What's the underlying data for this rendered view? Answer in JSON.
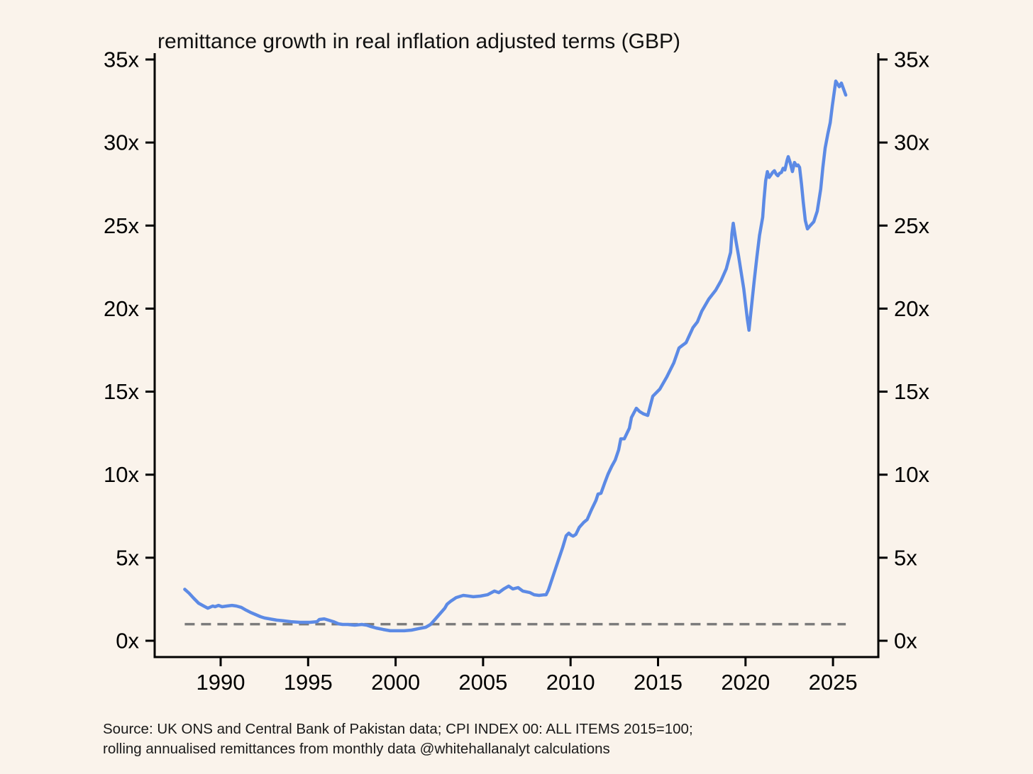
{
  "page": {
    "background_color": "#FAF3EB"
  },
  "chart_data": {
    "type": "line",
    "title": "remittance growth in real inflation adjusted terms (GBP)",
    "xlabel": "",
    "ylabel": "",
    "x_axis": {
      "tick_values": [
        1990,
        1995,
        2000,
        2005,
        2010,
        2015,
        2020,
        2025
      ],
      "tick_labels": [
        "1990",
        "1995",
        "2000",
        "2005",
        "2010",
        "2015",
        "2020",
        "2025"
      ],
      "range": [
        1986.2,
        2027.6
      ]
    },
    "y_axis": {
      "tick_values": [
        0,
        5,
        10,
        15,
        20,
        25,
        30,
        35
      ],
      "tick_labels": [
        "0x",
        "5x",
        "10x",
        "15x",
        "20x",
        "25x",
        "30x",
        "35x"
      ],
      "range": [
        -1,
        35.5
      ],
      "mirrored_right": true
    },
    "grid": "off",
    "legend": "none",
    "ref_line": {
      "value": 1,
      "style": "dashed",
      "color": "#7b7b7b",
      "meaning": "1x baseline"
    },
    "series": [
      {
        "name": "remittance growth multiple (real GBP)",
        "color": "#5C8AE5",
        "points": [
          [
            1987.95,
            3.1
          ],
          [
            1988.2,
            2.86
          ],
          [
            1988.46,
            2.56
          ],
          [
            1988.74,
            2.26
          ],
          [
            1989.03,
            2.09
          ],
          [
            1989.27,
            1.96
          ],
          [
            1989.55,
            2.09
          ],
          [
            1989.68,
            2.05
          ],
          [
            1989.88,
            2.13
          ],
          [
            1990.08,
            2.05
          ],
          [
            1990.36,
            2.09
          ],
          [
            1990.65,
            2.13
          ],
          [
            1990.9,
            2.09
          ],
          [
            1991.18,
            2.01
          ],
          [
            1991.46,
            1.84
          ],
          [
            1991.7,
            1.71
          ],
          [
            1991.99,
            1.58
          ],
          [
            1992.27,
            1.45
          ],
          [
            1992.51,
            1.37
          ],
          [
            1992.8,
            1.32
          ],
          [
            1993.2,
            1.24
          ],
          [
            1993.6,
            1.2
          ],
          [
            1994.01,
            1.15
          ],
          [
            1994.54,
            1.11
          ],
          [
            1995.11,
            1.11
          ],
          [
            1995.51,
            1.15
          ],
          [
            1995.64,
            1.28
          ],
          [
            1995.92,
            1.32
          ],
          [
            1996.16,
            1.24
          ],
          [
            1996.45,
            1.15
          ],
          [
            1996.73,
            1.02
          ],
          [
            1996.97,
            0.98
          ],
          [
            1997.26,
            0.98
          ],
          [
            1997.66,
            0.94
          ],
          [
            1998.07,
            0.98
          ],
          [
            1998.35,
            0.94
          ],
          [
            1998.6,
            0.85
          ],
          [
            1998.88,
            0.77
          ],
          [
            1999.29,
            0.68
          ],
          [
            1999.69,
            0.6
          ],
          [
            2000.1,
            0.6
          ],
          [
            2000.5,
            0.6
          ],
          [
            2000.91,
            0.64
          ],
          [
            2001.31,
            0.73
          ],
          [
            2001.72,
            0.81
          ],
          [
            2002.0,
            0.98
          ],
          [
            2002.25,
            1.28
          ],
          [
            2002.53,
            1.62
          ],
          [
            2002.81,
            1.96
          ],
          [
            2002.94,
            2.2
          ],
          [
            2003.15,
            2.38
          ],
          [
            2003.46,
            2.6
          ],
          [
            2003.87,
            2.73
          ],
          [
            2004.1,
            2.7
          ],
          [
            2004.44,
            2.65
          ],
          [
            2004.84,
            2.69
          ],
          [
            2005.25,
            2.77
          ],
          [
            2005.65,
            2.99
          ],
          [
            2005.9,
            2.9
          ],
          [
            2006.18,
            3.12
          ],
          [
            2006.46,
            3.29
          ],
          [
            2006.7,
            3.12
          ],
          [
            2007.0,
            3.2
          ],
          [
            2007.27,
            2.99
          ],
          [
            2007.68,
            2.9
          ],
          [
            2007.92,
            2.77
          ],
          [
            2008.2,
            2.73
          ],
          [
            2008.45,
            2.76
          ],
          [
            2008.6,
            2.77
          ],
          [
            2008.74,
            3.07
          ],
          [
            2009.14,
            4.34
          ],
          [
            2009.55,
            5.62
          ],
          [
            2009.75,
            6.32
          ],
          [
            2009.9,
            6.48
          ],
          [
            2010.03,
            6.36
          ],
          [
            2010.15,
            6.3
          ],
          [
            2010.3,
            6.4
          ],
          [
            2010.5,
            6.83
          ],
          [
            2010.76,
            7.13
          ],
          [
            2010.95,
            7.3
          ],
          [
            2011.2,
            7.9
          ],
          [
            2011.45,
            8.45
          ],
          [
            2011.57,
            8.83
          ],
          [
            2011.74,
            8.88
          ],
          [
            2011.95,
            9.5
          ],
          [
            2012.14,
            10.03
          ],
          [
            2012.35,
            10.5
          ],
          [
            2012.55,
            10.88
          ],
          [
            2012.75,
            11.5
          ],
          [
            2012.87,
            12.16
          ],
          [
            2013.07,
            12.16
          ],
          [
            2013.36,
            12.8
          ],
          [
            2013.48,
            13.44
          ],
          [
            2013.76,
            14.0
          ],
          [
            2013.95,
            13.8
          ],
          [
            2014.17,
            13.66
          ],
          [
            2014.41,
            13.57
          ],
          [
            2014.7,
            14.72
          ],
          [
            2015.1,
            15.15
          ],
          [
            2015.5,
            15.88
          ],
          [
            2015.9,
            16.73
          ],
          [
            2016.2,
            17.63
          ],
          [
            2016.35,
            17.75
          ],
          [
            2016.6,
            17.95
          ],
          [
            2017.0,
            18.86
          ],
          [
            2017.25,
            19.2
          ],
          [
            2017.5,
            19.84
          ],
          [
            2017.9,
            20.57
          ],
          [
            2018.3,
            21.12
          ],
          [
            2018.6,
            21.68
          ],
          [
            2018.9,
            22.4
          ],
          [
            2019.15,
            23.39
          ],
          [
            2019.22,
            24.5
          ],
          [
            2019.3,
            25.14
          ],
          [
            2019.45,
            24.1
          ],
          [
            2019.6,
            23.2
          ],
          [
            2019.75,
            22.2
          ],
          [
            2019.9,
            21.2
          ],
          [
            2020.0,
            20.3
          ],
          [
            2020.1,
            19.4
          ],
          [
            2020.2,
            18.7
          ],
          [
            2020.35,
            20.2
          ],
          [
            2020.5,
            21.7
          ],
          [
            2020.65,
            23.1
          ],
          [
            2020.8,
            24.4
          ],
          [
            2020.98,
            25.5
          ],
          [
            2021.05,
            26.5
          ],
          [
            2021.15,
            27.7
          ],
          [
            2021.25,
            28.25
          ],
          [
            2021.35,
            27.9
          ],
          [
            2021.45,
            28.05
          ],
          [
            2021.55,
            28.2
          ],
          [
            2021.65,
            28.3
          ],
          [
            2021.75,
            28.1
          ],
          [
            2021.85,
            28.0
          ],
          [
            2021.95,
            28.15
          ],
          [
            2022.05,
            28.2
          ],
          [
            2022.15,
            28.45
          ],
          [
            2022.25,
            28.35
          ],
          [
            2022.38,
            28.95
          ],
          [
            2022.44,
            29.15
          ],
          [
            2022.55,
            28.8
          ],
          [
            2022.68,
            28.25
          ],
          [
            2022.8,
            28.8
          ],
          [
            2022.92,
            28.6
          ],
          [
            2023.0,
            28.65
          ],
          [
            2023.09,
            28.5
          ],
          [
            2023.2,
            27.5
          ],
          [
            2023.3,
            26.4
          ],
          [
            2023.42,
            25.3
          ],
          [
            2023.54,
            24.8
          ],
          [
            2023.7,
            25.0
          ],
          [
            2023.9,
            25.23
          ],
          [
            2024.1,
            25.87
          ],
          [
            2024.3,
            27.2
          ],
          [
            2024.42,
            28.5
          ],
          [
            2024.55,
            29.66
          ],
          [
            2024.7,
            30.5
          ],
          [
            2024.84,
            31.2
          ],
          [
            2024.96,
            32.2
          ],
          [
            2025.16,
            33.7
          ],
          [
            2025.36,
            33.36
          ],
          [
            2025.48,
            33.58
          ],
          [
            2025.73,
            32.86
          ]
        ]
      }
    ],
    "source_lines": [
      "Source: UK ONS and Central Bank of Pakistan data; CPI INDEX 00: ALL ITEMS 2015=100;",
      "rolling annualised remittances from monthly data @whitehallanalyt calculations"
    ]
  }
}
